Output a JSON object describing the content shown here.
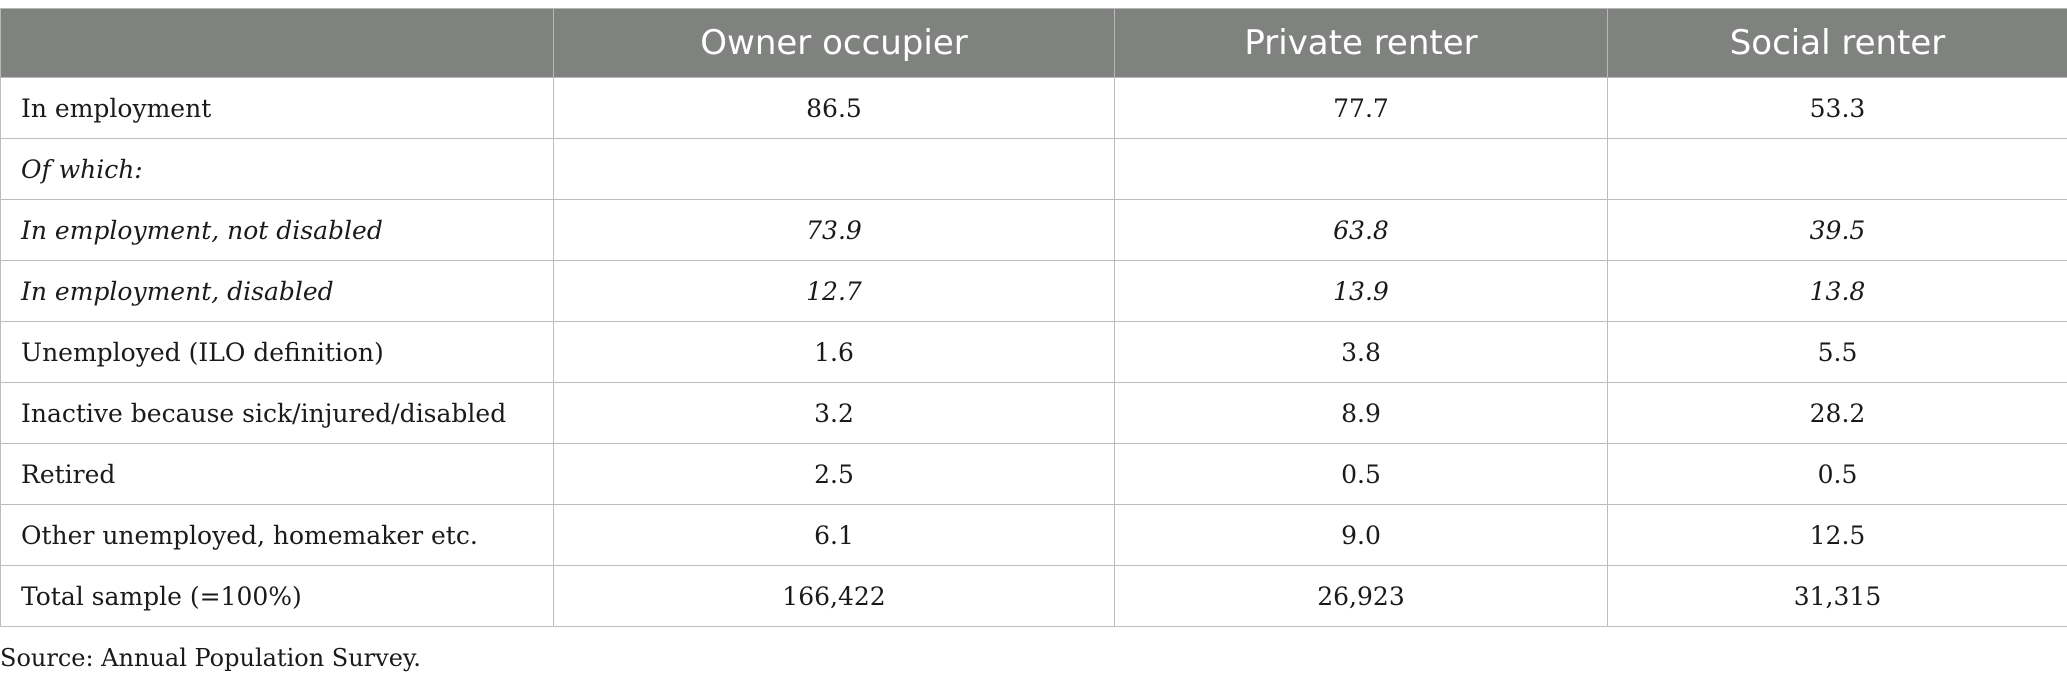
{
  "table": {
    "headers": [
      "",
      "Owner occupier",
      "Private renter",
      "Social renter"
    ],
    "rows": [
      {
        "label": "In employment",
        "values": [
          "86.5",
          "77.7",
          "53.3"
        ]
      },
      {
        "label": "Of which:",
        "values": [
          "",
          "",
          ""
        ]
      },
      {
        "label": "In employment, not disabled",
        "values": [
          "73.9",
          "63.8",
          "39.5"
        ]
      },
      {
        "label": "In employment, disabled",
        "values": [
          "12.7",
          "13.9",
          "13.8"
        ]
      },
      {
        "label": "Unemployed (ILO definition)",
        "values": [
          "1.6",
          "3.8",
          "5.5"
        ]
      },
      {
        "label": "Inactive because sick/injured/disabled",
        "values": [
          "3.2",
          "8.9",
          "28.2"
        ]
      },
      {
        "label": "Retired",
        "values": [
          "2.5",
          "0.5",
          "0.5"
        ]
      },
      {
        "label": "Other unemployed, homemaker etc.",
        "values": [
          "6.1",
          "9.0",
          "12.5"
        ]
      },
      {
        "label": "Total sample (=100%)",
        "values": [
          "166,422",
          "26,923",
          "31,315"
        ]
      }
    ]
  },
  "source": "Source: Annual Population Survey.",
  "colors": {
    "header_bg": "#7f827f",
    "header_text": "#ffffff",
    "border": "#bdbdbd"
  }
}
